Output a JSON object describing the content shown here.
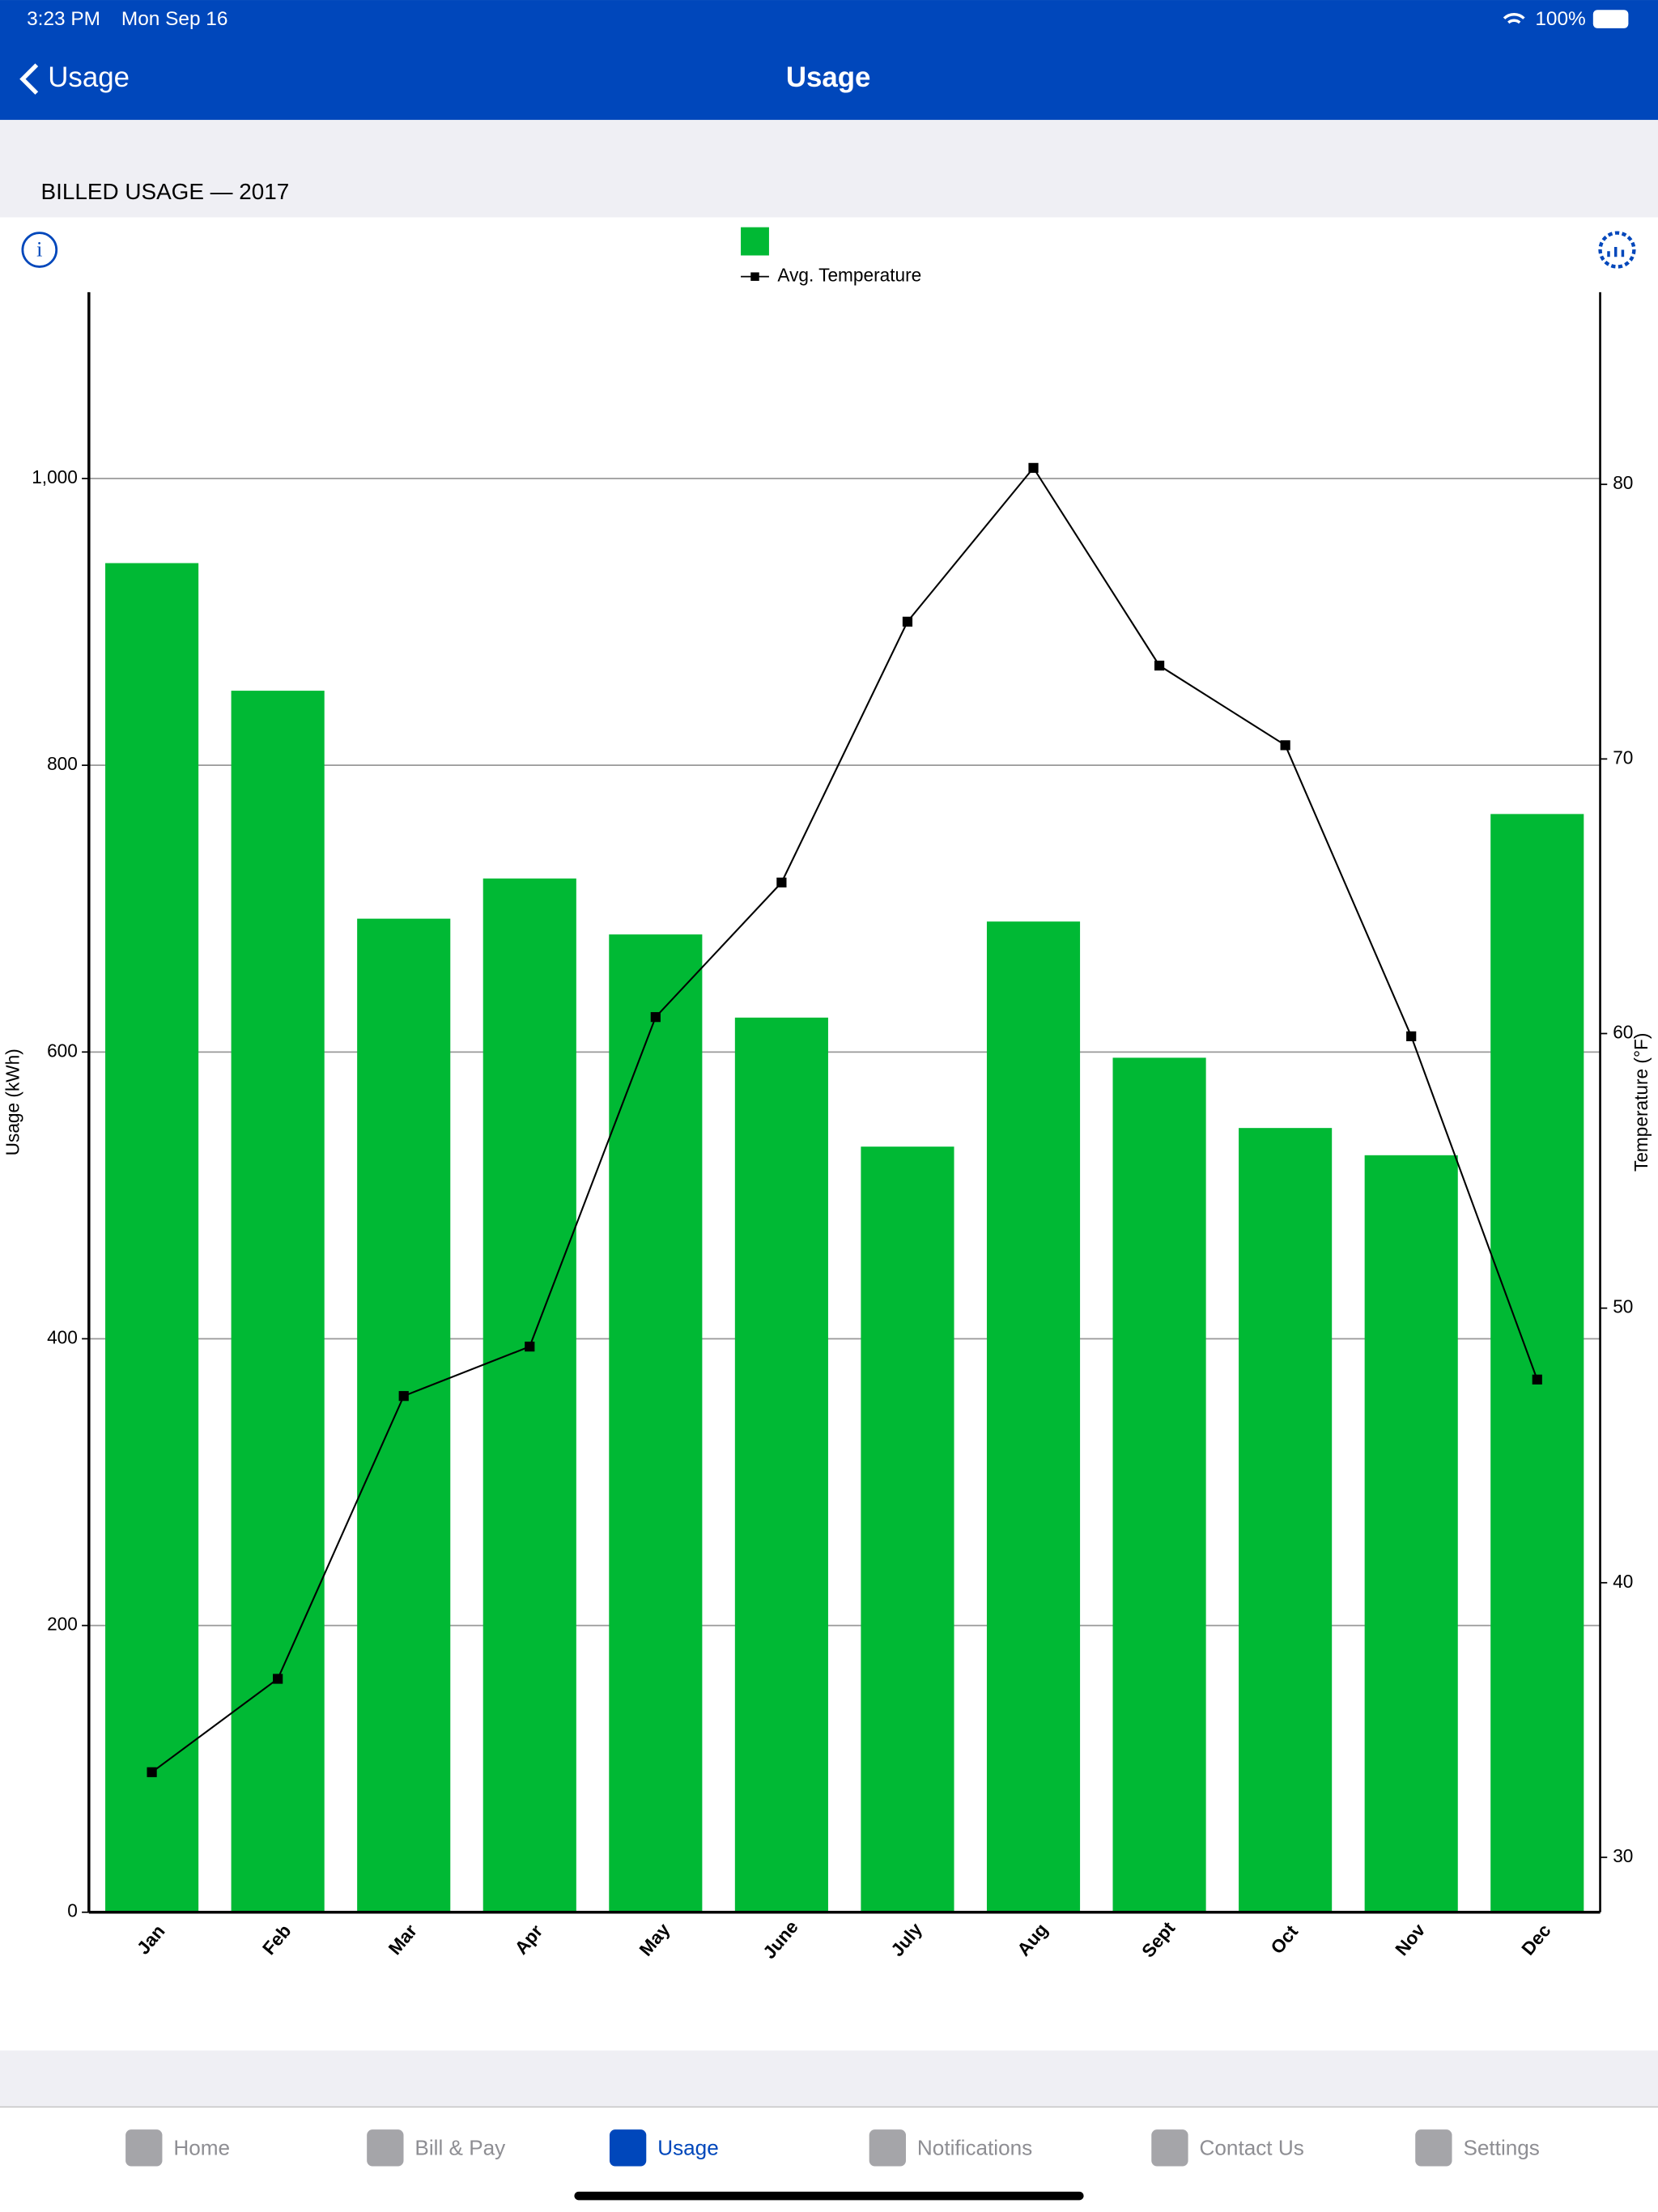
{
  "status_bar": {
    "time": "3:23 PM",
    "date": "Mon Sep 16",
    "battery": "100%"
  },
  "nav": {
    "back": "Usage",
    "title": "Usage"
  },
  "section": {
    "title": "BILLED USAGE — 2017"
  },
  "chart_data": {
    "type": "bar",
    "categories": [
      "Jan",
      "Feb",
      "Mar",
      "Apr",
      "May",
      "June",
      "July",
      "Aug",
      "Sept",
      "Oct",
      "Nov",
      "Dec"
    ],
    "series": [
      {
        "color": "#00b934",
        "values": [
          941,
          852,
          693,
          721,
          682,
          624,
          534,
          691,
          596,
          547,
          528,
          766
        ]
      },
      {
        "name": "Avg. Temperature",
        "type": "line",
        "axis": "y2",
        "color": "#000000",
        "values": [
          33.1,
          36.5,
          46.8,
          48.6,
          60.6,
          65.5,
          75.0,
          80.6,
          73.4,
          70.5,
          59.9,
          47.4
        ]
      }
    ],
    "ylabel": "Usage (kWh)",
    "y2label": "Temperature (°F)",
    "ylim": [
      0,
      1130
    ],
    "yticks": [
      0,
      200,
      400,
      600,
      800,
      {
        "value": 1000,
        "label": "1,000"
      }
    ],
    "y2lim": [
      28,
      87
    ],
    "y2ticks": [
      30,
      40,
      50,
      60,
      70,
      80
    ],
    "grid": true,
    "legend": "top"
  },
  "tabs": [
    "Home",
    "Bill & Pay",
    "Usage",
    "Notifications",
    "Contact Us",
    "Settings"
  ],
  "active_tab": 2
}
